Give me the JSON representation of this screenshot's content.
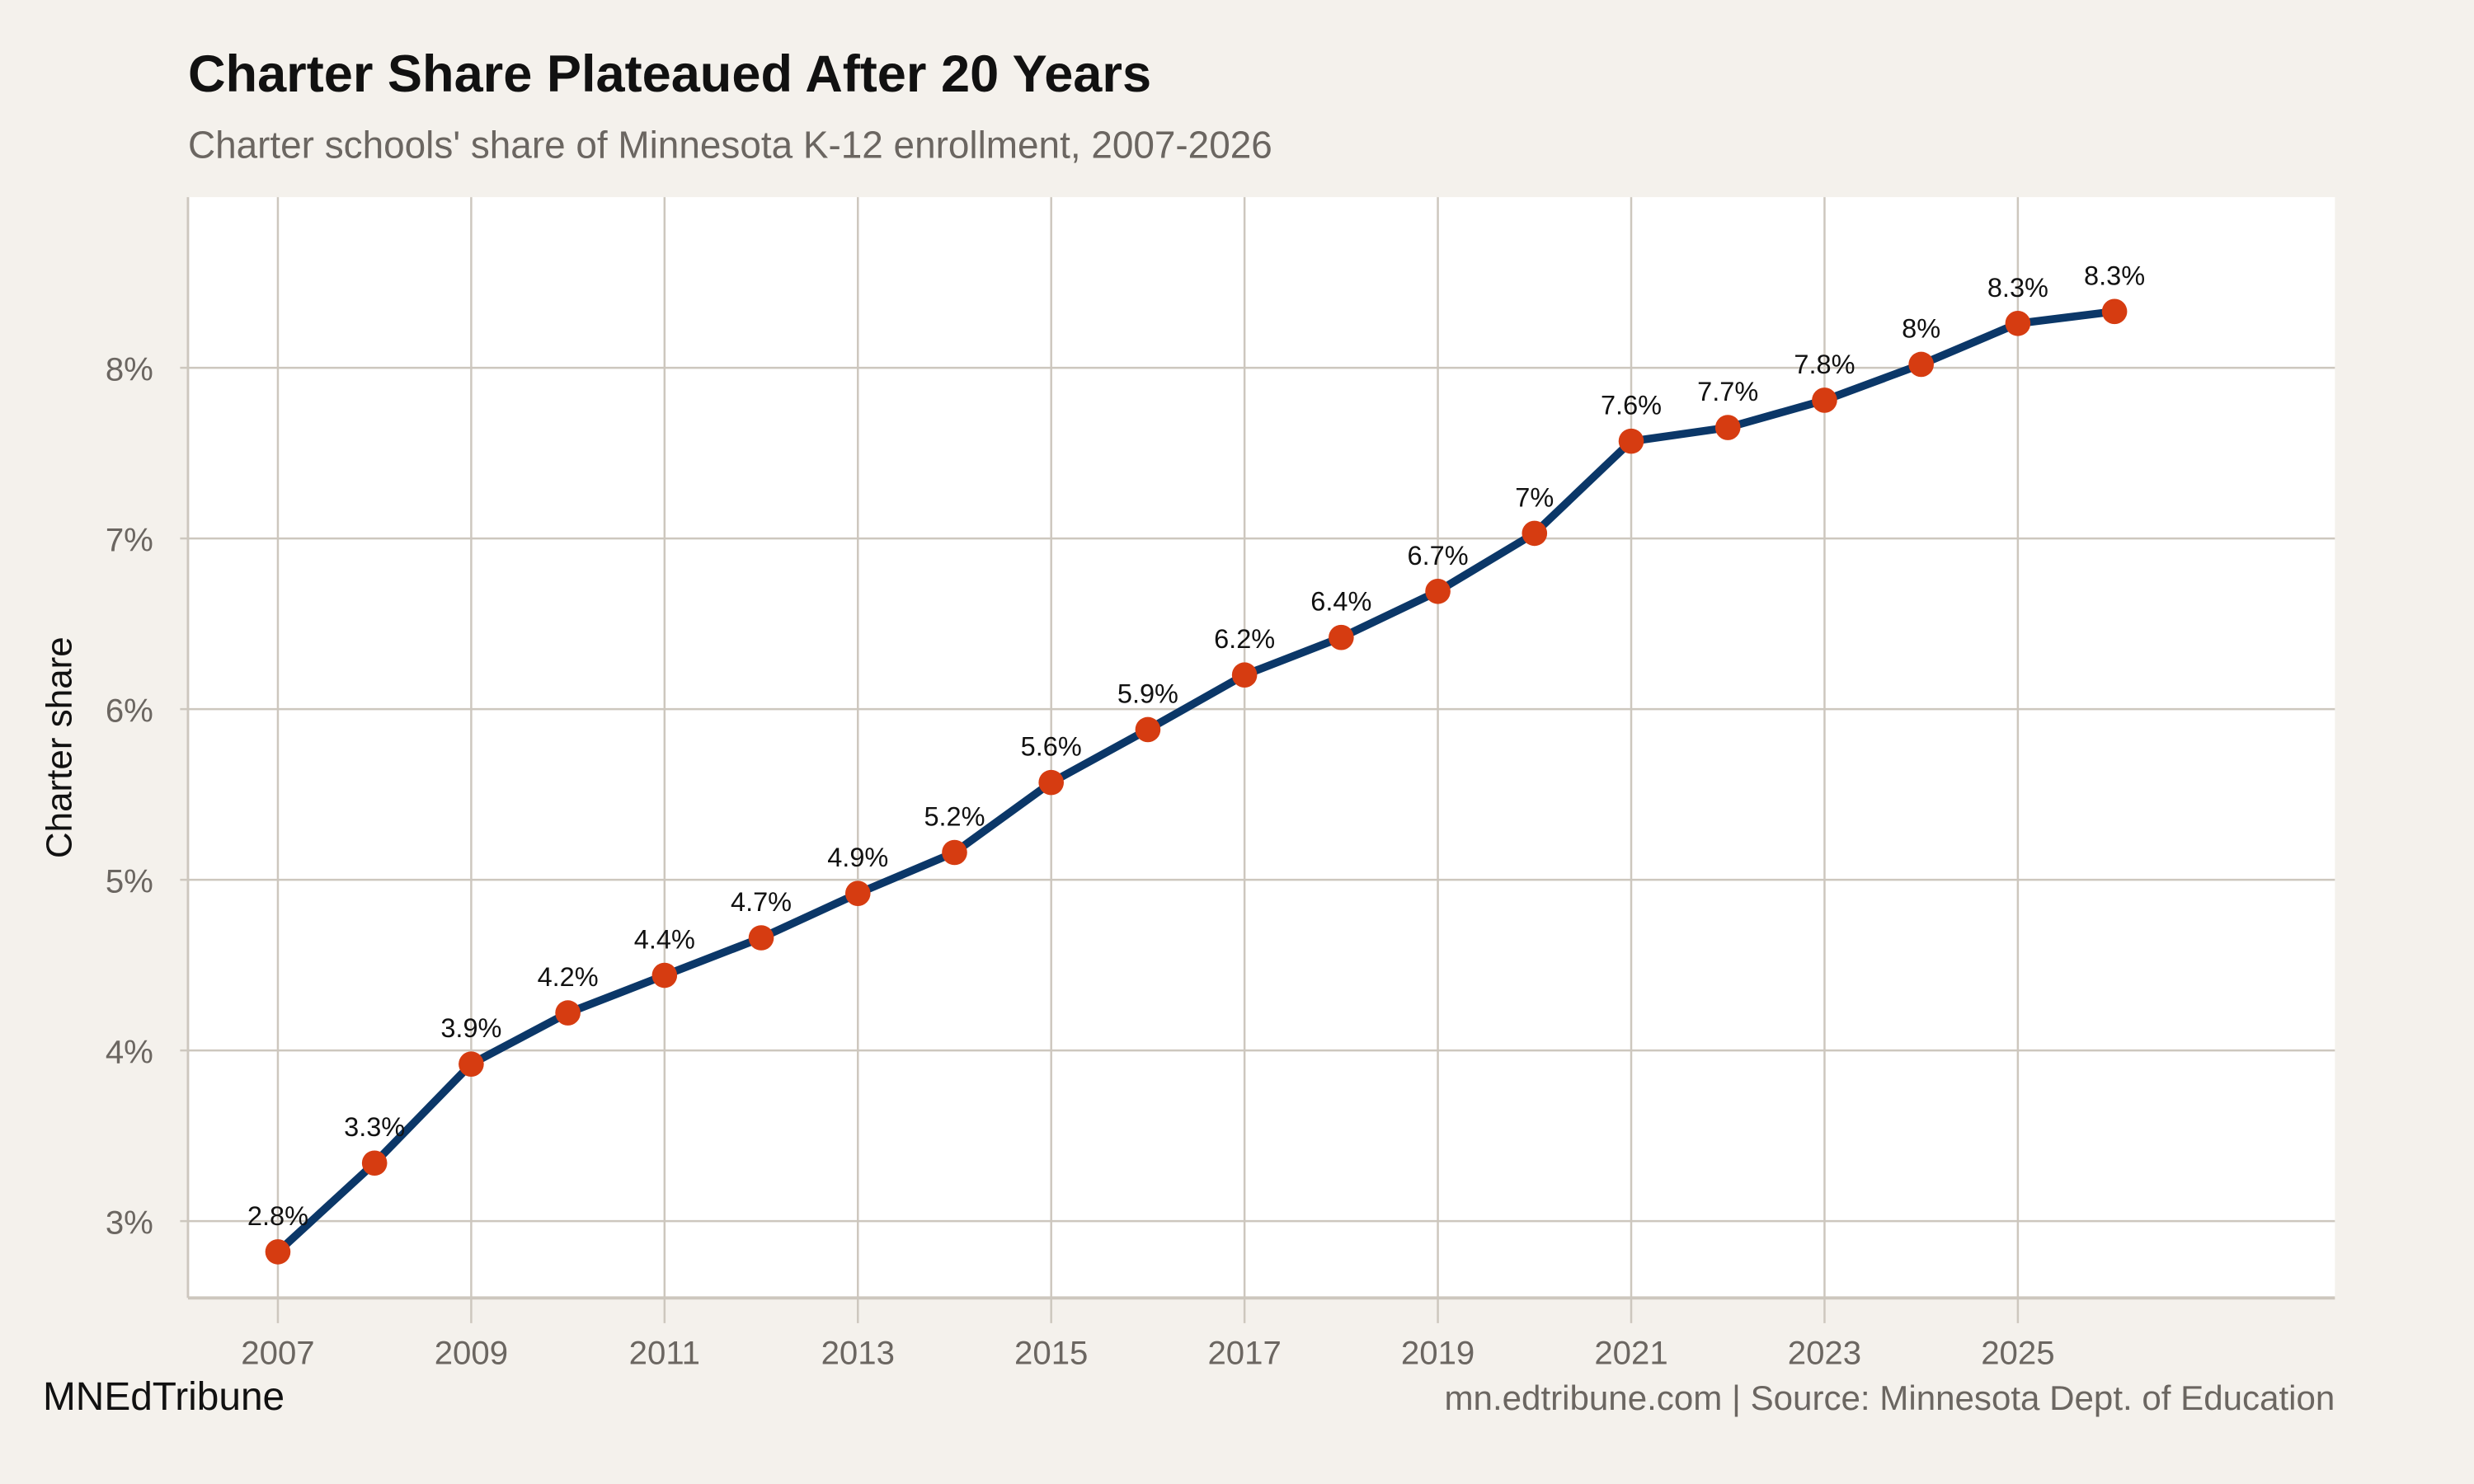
{
  "chart_data": {
    "type": "line",
    "title": "Charter Share Plateaued After 20 Years",
    "subtitle": "Charter schools' share of Minnesota K-12 enrollment, 2007-2026",
    "xlabel": "",
    "ylabel": "Charter share",
    "x": [
      2007,
      2008,
      2009,
      2010,
      2011,
      2012,
      2013,
      2014,
      2015,
      2016,
      2017,
      2018,
      2019,
      2020,
      2021,
      2022,
      2023,
      2024,
      2025,
      2026
    ],
    "series": [
      {
        "values": [
          2.82,
          3.34,
          3.92,
          4.22,
          4.44,
          4.66,
          4.92,
          5.16,
          5.57,
          5.88,
          6.2,
          6.42,
          6.69,
          7.03,
          7.57,
          7.65,
          7.81,
          8.02,
          8.26,
          8.33
        ],
        "labels": [
          "2.8%",
          "3.3%",
          "3.9%",
          "4.2%",
          "4.4%",
          "4.7%",
          "4.9%",
          "5.2%",
          "5.6%",
          "5.9%",
          "6.2%",
          "6.4%",
          "6.7%",
          "7%",
          "7.6%",
          "7.7%",
          "7.8%",
          "8%",
          "8.3%",
          "8.3%"
        ]
      }
    ],
    "xticks": [
      2007,
      2009,
      2011,
      2013,
      2015,
      2017,
      2019,
      2021,
      2023,
      2025
    ],
    "xtick_labels": [
      "2007",
      "2009",
      "2011",
      "2013",
      "2015",
      "2017",
      "2019",
      "2021",
      "2023",
      "2025"
    ],
    "yticks": [
      3,
      4,
      5,
      6,
      7,
      8
    ],
    "ytick_labels": [
      "3%",
      "4%",
      "5%",
      "6%",
      "7%",
      "8%"
    ],
    "xlim": [
      2006.07,
      2028.28
    ],
    "ylim": [
      2.55,
      9.0
    ],
    "grid": true,
    "colors": {
      "line": "#0b3768",
      "points": "#d63c11",
      "background": "#f4f1ec",
      "panel": "#ffffff",
      "grid": "#cdc7be"
    }
  },
  "footer": {
    "brand": "MNEdTribune",
    "source": "mn.edtribune.com | Source: Minnesota Dept. of Education"
  }
}
